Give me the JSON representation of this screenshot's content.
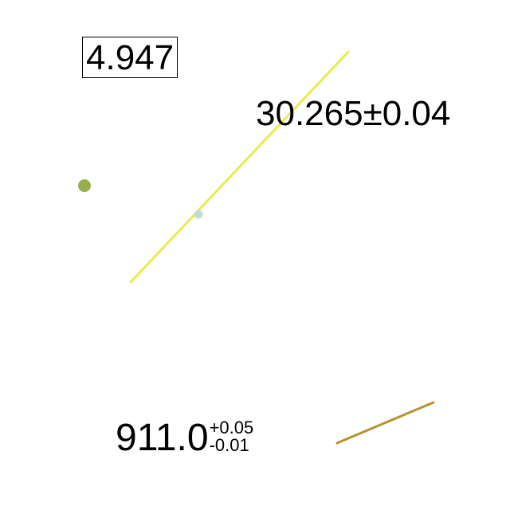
{
  "annotations": {
    "boxed_value": "4.947",
    "plus_minus_value": "30.265±0.04",
    "asymmetric_value": {
      "base": "911.0",
      "upper": "+0.05",
      "lower": "-0.01"
    }
  },
  "colors": {
    "long_line": "#e8ec4c",
    "short_line": "#b8922e",
    "large_dot": "#98ae4e",
    "small_dot": "#c4ddd4",
    "text": "#000000",
    "background": "#ffffff"
  }
}
